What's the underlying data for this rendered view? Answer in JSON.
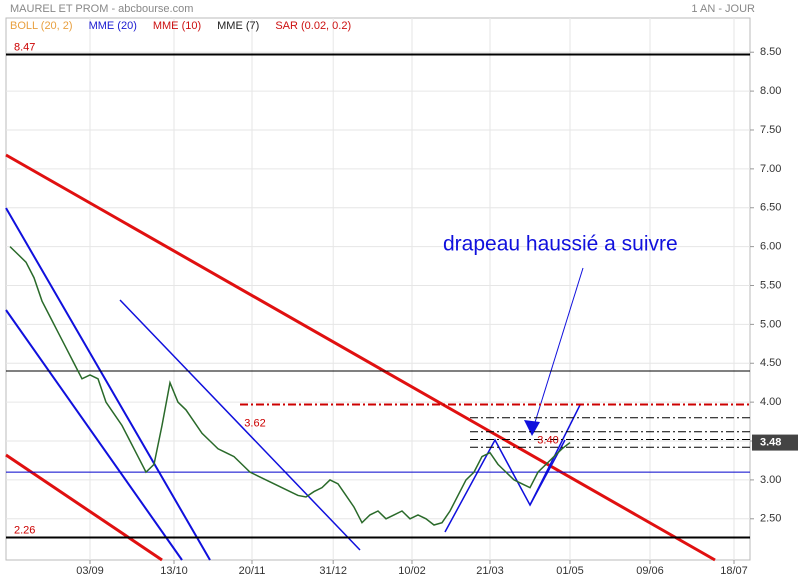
{
  "chart_data": {
    "type": "line",
    "title": "MAUREL ET PROM - abcbourse.com",
    "period": "1 AN - JOUR",
    "indicators": [
      {
        "name": "BOLL (20, 2)",
        "color": "#e8a040"
      },
      {
        "name": "MME (20)",
        "color": "#1a1ad0"
      },
      {
        "name": "MME (10)",
        "color": "#cc1010"
      },
      {
        "name": "MME (7)",
        "color": "#222222"
      },
      {
        "name": "SAR (0.02, 0.2)",
        "color": "#cc1010"
      }
    ],
    "annotation": "drapeau haussié  a suivre",
    "series": [
      {
        "color": "#2a6a2a",
        "values": [
          6.0,
          5.9,
          5.8,
          5.6,
          5.3,
          5.1,
          4.9,
          4.7,
          4.5,
          4.3,
          4.35,
          4.3,
          4.0,
          3.85,
          3.7,
          3.5,
          3.3,
          3.1,
          3.2,
          3.7,
          4.25,
          4.0,
          3.9,
          3.75,
          3.6,
          3.5,
          3.4,
          3.35,
          3.3,
          3.2,
          3.1,
          3.05,
          3.0,
          2.95,
          2.9,
          2.85,
          2.8,
          2.78,
          2.85,
          2.9,
          3.0,
          2.95,
          2.8,
          2.65,
          2.45,
          2.55,
          2.6,
          2.5,
          2.55,
          2.6,
          2.5,
          2.55,
          2.5,
          2.42,
          2.45,
          2.6,
          2.8,
          3.0,
          3.1,
          3.3,
          3.35,
          3.2,
          3.1,
          3.0,
          2.95,
          2.9,
          3.1,
          3.2,
          3.3,
          3.4,
          3.48
        ]
      }
    ],
    "xlim": [
      -0.5,
      92.5
    ],
    "xticks": [
      {
        "value": 10,
        "label": "03/09"
      },
      {
        "value": 20.5,
        "label": "13/10"
      },
      {
        "value": 30.25,
        "label": "20/11"
      },
      {
        "value": 40.4,
        "label": "31/12"
      },
      {
        "value": 50.25,
        "label": "10/02"
      },
      {
        "value": 60,
        "label": "21/03"
      },
      {
        "value": 70,
        "label": "01/05"
      },
      {
        "value": 80,
        "label": "09/06"
      },
      {
        "value": 90.5,
        "label": "18/07"
      }
    ],
    "ylim": [
      1.97,
      8.94
    ],
    "yticks": [
      {
        "value": 2.5,
        "label": "2.50"
      },
      {
        "value": 3,
        "label": "3.00"
      },
      {
        "value": 3.5,
        "label": "3.50"
      },
      {
        "value": 4,
        "label": "4.00"
      },
      {
        "value": 4.5,
        "label": "4.50"
      },
      {
        "value": 5,
        "label": "5.00"
      },
      {
        "value": 5.5,
        "label": "5.50"
      },
      {
        "value": 6,
        "label": "6.00"
      },
      {
        "value": 6.5,
        "label": "6.50"
      },
      {
        "value": 7,
        "label": "7.00"
      },
      {
        "value": 7.5,
        "label": "7.50"
      },
      {
        "value": 8,
        "label": "8.00"
      },
      {
        "value": 8.5,
        "label": "8.50"
      }
    ],
    "grid": true,
    "levels": [
      8.47,
      2.26
    ],
    "price_labels": [
      3.62,
      {
        "value": 3.4,
        "label": "3.40"
      }
    ],
    "lines": [
      {
        "value": 4.4,
        "color": "#000000",
        "dash": false
      },
      {
        "value": 3.97,
        "color": "#cc0000",
        "dash": true
      },
      {
        "value": 3.8,
        "color": "#000000",
        "dash": true
      },
      {
        "value": 3.62,
        "color": "#000000",
        "dash": true
      },
      {
        "value": 3.52,
        "color": "#000000",
        "dash": true
      },
      {
        "value": 3.42,
        "color": "#000000",
        "dash": true
      },
      {
        "value": 3.1,
        "color": "#0000cc",
        "dash": false
      }
    ],
    "last": 3.48
  }
}
